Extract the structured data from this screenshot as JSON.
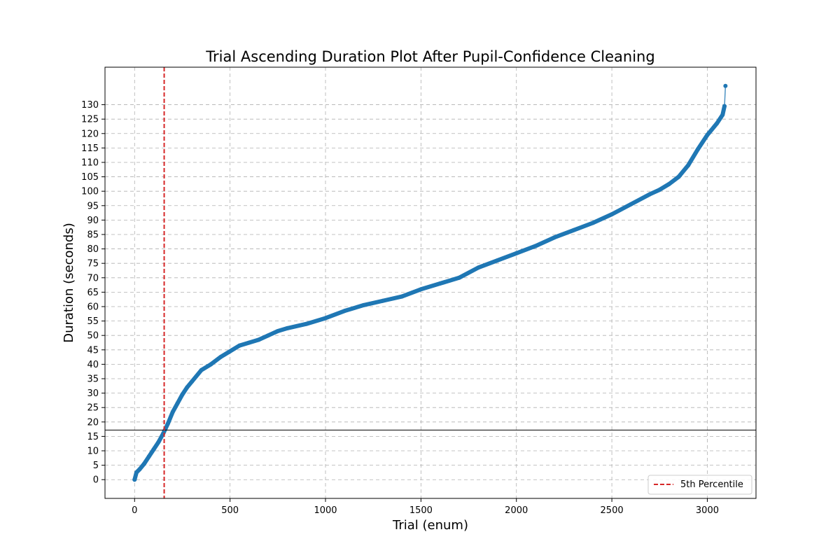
{
  "chart_data": {
    "type": "line",
    "title": "Trial Ascending Duration Plot After Pupil-Confidence Cleaning",
    "xlabel": "Trial (enum)",
    "ylabel": "Duration (seconds)",
    "xlim": [
      -155,
      3255
    ],
    "ylim": [
      -6.5,
      143
    ],
    "xticks": [
      0,
      500,
      1000,
      1500,
      2000,
      2500,
      3000
    ],
    "yticks": [
      0,
      5,
      10,
      15,
      20,
      25,
      30,
      35,
      40,
      45,
      50,
      55,
      60,
      65,
      70,
      75,
      80,
      85,
      90,
      95,
      100,
      105,
      110,
      115,
      120,
      125,
      130
    ],
    "grid": true,
    "legend_position": "bottom-right",
    "series": [
      {
        "color": "#1f77b4",
        "x": [
          0,
          10,
          25,
          50,
          75,
          100,
          125,
          150,
          175,
          200,
          225,
          250,
          275,
          300,
          350,
          400,
          450,
          500,
          550,
          600,
          650,
          700,
          750,
          800,
          900,
          1000,
          1100,
          1200,
          1300,
          1400,
          1500,
          1600,
          1700,
          1800,
          1900,
          2000,
          2100,
          2200,
          2300,
          2400,
          2500,
          2600,
          2700,
          2750,
          2800,
          2850,
          2900,
          2950,
          3000,
          3050,
          3080,
          3090,
          3095
        ],
        "y": [
          0,
          2.5,
          3.5,
          5.5,
          8,
          10.5,
          13,
          16,
          19.5,
          23.5,
          26.5,
          29.5,
          32,
          34,
          38,
          40,
          42.5,
          44.5,
          46.5,
          47.5,
          48.5,
          50,
          51.5,
          52.5,
          54,
          56,
          58.5,
          60.5,
          62,
          63.5,
          66,
          68,
          70,
          73.5,
          76,
          78.5,
          81,
          84,
          86.5,
          89,
          92,
          95.5,
          99,
          100.5,
          102.5,
          105,
          109,
          114.5,
          119.5,
          123.5,
          126.5,
          129.5,
          136.5
        ]
      }
    ],
    "hlines": [
      {
        "y": 17.2,
        "color": "#000000"
      }
    ],
    "vlines": [
      {
        "x": 155,
        "color": "#d62728",
        "label": "5th Percentile",
        "style": "dashed"
      }
    ]
  }
}
